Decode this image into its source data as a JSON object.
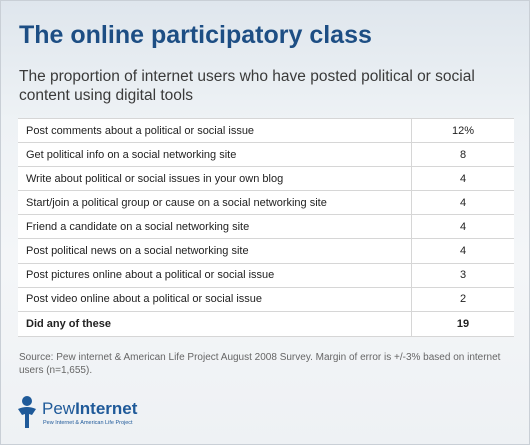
{
  "title": "The online participatory class",
  "subtitle": "The proportion of internet users who have posted political or social content using digital tools",
  "chart_data": {
    "type": "table",
    "rows": [
      {
        "label": "Post comments about a political or social issue",
        "value": "12%"
      },
      {
        "label": "Get political info on a social networking site",
        "value": "8"
      },
      {
        "label": "Write about political or social issues in your own blog",
        "value": "4"
      },
      {
        "label": "Start/join a political group or cause on a social networking site",
        "value": "4"
      },
      {
        "label": "Friend a candidate on a social networking site",
        "value": "4"
      },
      {
        "label": "Post political news on a social networking site",
        "value": "4"
      },
      {
        "label": "Post pictures online about a political or social issue",
        "value": "3"
      },
      {
        "label": "Post video online about a political or social issue",
        "value": "2"
      }
    ],
    "total": {
      "label": "Did any of these",
      "value": "19"
    }
  },
  "source": "Source: Pew internet & American Life Project August 2008 Survey. Margin of error is +/-3% based on internet users (n=1,655).",
  "logo": {
    "name_part1": "Pew",
    "name_part2": "Internet",
    "tagline": "Pew Internet & American Life Project"
  }
}
